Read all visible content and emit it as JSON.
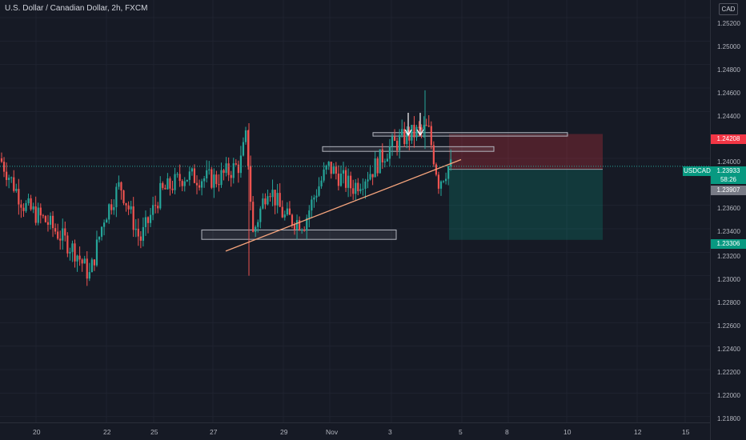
{
  "header": {
    "symbol_title": "U.S. Dollar / Canadian Dollar, 2h, FXCM",
    "currency": "CAD"
  },
  "price_axis": {
    "ticks": [
      "1.25200",
      "1.25000",
      "1.24800",
      "1.24600",
      "1.24400",
      "1.24000",
      "1.23600",
      "1.23400",
      "1.23200",
      "1.23000",
      "1.22800",
      "1.22600",
      "1.22400",
      "1.22200",
      "1.22000",
      "1.21800"
    ],
    "stop_level": "1.24208",
    "current_symbol": "USDCAD",
    "current_price": "1.23933",
    "countdown": "58:26",
    "entry_level": "1.23907",
    "target_level": "1.23306"
  },
  "time_axis": {
    "ticks": [
      "20",
      "22",
      "25",
      "27",
      "29",
      "Nov",
      "3",
      "5",
      "8",
      "10",
      "12",
      "15"
    ]
  },
  "colors": {
    "bull": "#26a69a",
    "bear": "#ef5350",
    "stop_zone": "rgba(242,54,69,0.25)",
    "target_zone": "rgba(8,153,129,0.25)"
  },
  "chart_data": {
    "type": "candlestick",
    "symbol": "USDCAD",
    "interval": "2h",
    "ylim": [
      1.2175,
      1.2535
    ],
    "current_price": 1.23933,
    "position": {
      "type": "short",
      "stop": 1.24208,
      "entry": 1.23907,
      "target": 1.23306
    },
    "boxes": [
      {
        "from": 1.2422,
        "to": 1.2419
      },
      {
        "from": 1.241,
        "to": 1.2406
      },
      {
        "from": 1.2339,
        "to": 1.2331
      }
    ],
    "trendline": {
      "from": 1.2321,
      "to": 1.2399
    },
    "markers": [
      "down-arrow",
      "down-arrow"
    ]
  }
}
